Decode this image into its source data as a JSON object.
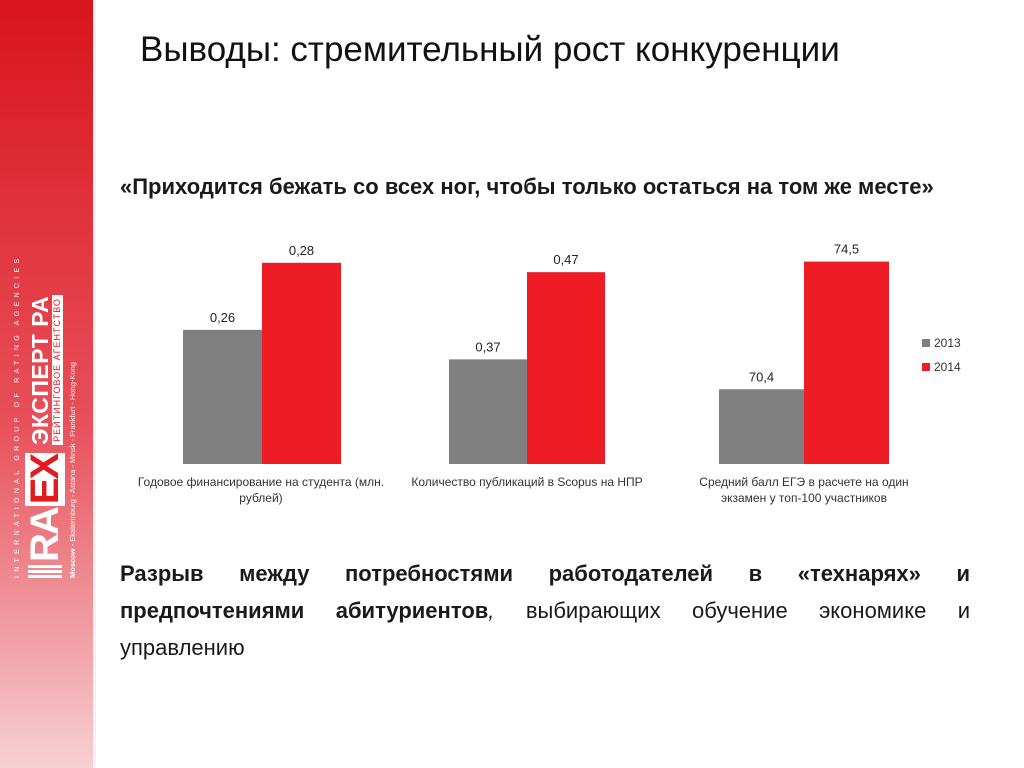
{
  "slide": {
    "title": "Выводы: стремительный рост конкуренции",
    "quote": "«Приходится бежать со всех ног, чтобы только остаться на том же месте»",
    "bottom_bold": "Разрыв между потребностями работодателей в «технарях» и предпочтениями абитуриентов",
    "bottom_comma": ",",
    "bottom_rest": " выбирающих обучение экономике и управлению"
  },
  "logo": {
    "top_line": "INTERNATIONAL GROUP OF RATING AGENCIES",
    "brand_left": "RA",
    "brand_x": "EX",
    "brand_big": "ЭКСПЕРТ РА",
    "brand_small": "РЕЙТИНГОВОЕ АГЕНТСТВО",
    "cities_first": "Moscow",
    "cities_rest": " - Ekaterinburg - Astana - Minsk - Frankfurt - Hong-Kong"
  },
  "colors": {
    "series_2013": "#808080",
    "series_2014": "#ee1c25",
    "brand_red": "#d8141c"
  },
  "chart_data": [
    {
      "type": "bar",
      "categories": [
        "Годовое финансирование на студента (млн. рублей)"
      ],
      "series": [
        {
          "name": "2013",
          "values": [
            0.26
          ],
          "labels": [
            "0,26"
          ]
        },
        {
          "name": "2014",
          "values": [
            0.28
          ],
          "labels": [
            "0,28"
          ]
        }
      ],
      "ylim": [
        0.22,
        0.285
      ]
    },
    {
      "type": "bar",
      "categories": [
        "Количество публикаций в Scopus на НПР"
      ],
      "series": [
        {
          "name": "2013",
          "values": [
            0.37
          ],
          "labels": [
            "0,37"
          ]
        },
        {
          "name": "2014",
          "values": [
            0.47
          ],
          "labels": [
            "0,47"
          ]
        }
      ],
      "ylim": [
        0.25,
        0.5
      ]
    },
    {
      "type": "bar",
      "categories": [
        "Средний балл ЕГЭ в расчете на один экзамен у топ-100 участников"
      ],
      "series": [
        {
          "name": "2013",
          "values": [
            70.4
          ],
          "labels": [
            "70,4"
          ]
        },
        {
          "name": "2014",
          "values": [
            74.5
          ],
          "labels": [
            "74,5"
          ]
        }
      ],
      "ylim": [
        68,
        75
      ],
      "legend": "right"
    }
  ]
}
